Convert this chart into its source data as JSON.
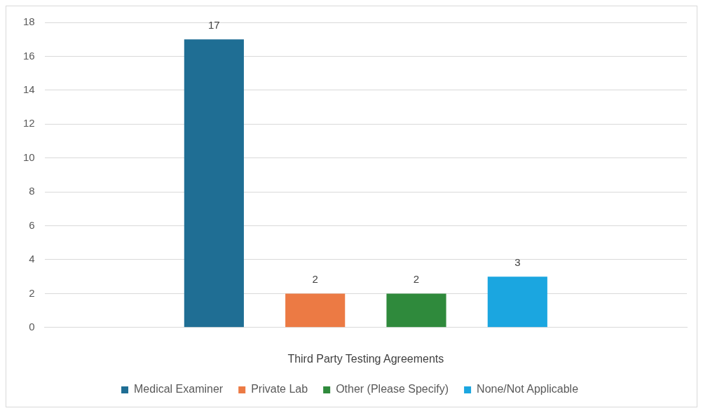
{
  "chart_data": {
    "type": "bar",
    "xlabel": "Third Party Testing Agreements",
    "categories": [
      null
    ],
    "series": [
      {
        "name": "Medical Examiner",
        "color": "#1f6e94",
        "values": [
          17
        ]
      },
      {
        "name": "Private Lab",
        "color": "#ec7a44",
        "values": [
          2
        ]
      },
      {
        "name": "Other (Please Specify)",
        "color": "#2f8a3c",
        "values": [
          2
        ]
      },
      {
        "name": "None/Not Applicable",
        "color": "#1ba6e0",
        "values": [
          3
        ]
      }
    ],
    "ylim": [
      0,
      18
    ],
    "yticks": [
      0,
      2,
      4,
      6,
      8,
      10,
      12,
      14,
      16,
      18
    ],
    "grid": "y",
    "legend": "bottom",
    "data_labels": true
  }
}
